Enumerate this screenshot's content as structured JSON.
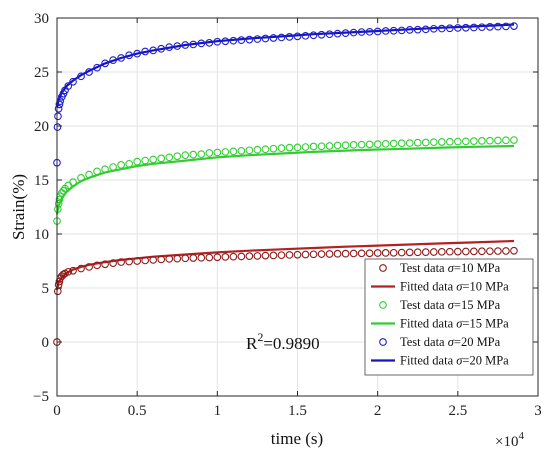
{
  "chart_data": {
    "type": "scatter",
    "xlabel": "time (s)",
    "ylabel": "Strain(%)",
    "x_multiplier": "×10",
    "x_multiplier_exp": "4",
    "xlim": [
      0,
      3
    ],
    "ylim": [
      -5,
      30
    ],
    "xticks": [
      0,
      0.5,
      1,
      1.5,
      2,
      2.5,
      3
    ],
    "xtick_labels": [
      "0",
      "0.5",
      "1",
      "1.5",
      "2",
      "2.5",
      "3"
    ],
    "yticks": [
      -5,
      0,
      5,
      10,
      15,
      20,
      25,
      30
    ],
    "ytick_labels": [
      "−5",
      "0",
      "5",
      "10",
      "15",
      "20",
      "25",
      "30"
    ],
    "grid": true,
    "annotation": {
      "text": "R",
      "sup": "2",
      "value": "=0.9890"
    },
    "legend": {
      "placement": "lower-right",
      "entries": [
        {
          "prefix": "Test data ",
          "sym": "σ",
          "suffix": "=10 MPa",
          "kind": "marker",
          "color": "#8b1a1a"
        },
        {
          "prefix": "Fitted data ",
          "sym": "σ",
          "suffix": "=10 MPa",
          "kind": "line",
          "color": "#b22222"
        },
        {
          "prefix": "Test data ",
          "sym": "σ",
          "suffix": "=15 MPa",
          "kind": "marker",
          "color": "#33cc33"
        },
        {
          "prefix": "Fitted data ",
          "sym": "σ",
          "suffix": "=15 MPa",
          "kind": "line",
          "color": "#33cc33"
        },
        {
          "prefix": "Test data ",
          "sym": "σ",
          "suffix": "=20 MPa",
          "kind": "marker",
          "color": "#1f1fcc"
        },
        {
          "prefix": "Fitted data ",
          "sym": "σ",
          "suffix": "=20 MPa",
          "kind": "line",
          "color": "#1515bb"
        }
      ]
    },
    "series": [
      {
        "kind": "test",
        "stress": "10 MPa",
        "color": "#8b1a1a",
        "x": [
          0.0,
          0.005,
          0.01,
          0.015,
          0.02,
          0.03,
          0.04,
          0.05,
          0.07,
          0.1,
          0.15,
          0.2,
          0.25,
          0.3,
          0.35,
          0.4,
          0.45,
          0.5,
          0.55,
          0.6,
          0.65,
          0.7,
          0.75,
          0.8,
          0.85,
          0.9,
          0.95,
          1.0,
          1.05,
          1.1,
          1.15,
          1.2,
          1.25,
          1.3,
          1.35,
          1.4,
          1.45,
          1.5,
          1.55,
          1.6,
          1.65,
          1.7,
          1.75,
          1.8,
          1.85,
          1.9,
          1.95,
          2.0,
          2.05,
          2.1,
          2.15,
          2.2,
          2.25,
          2.3,
          2.35,
          2.4,
          2.45,
          2.5,
          2.55,
          2.6,
          2.65,
          2.7,
          2.75,
          2.8,
          2.85
        ],
        "y": [
          0.0,
          4.7,
          5.3,
          5.6,
          5.9,
          6.1,
          6.25,
          6.35,
          6.5,
          6.6,
          6.8,
          6.95,
          7.1,
          7.2,
          7.3,
          7.4,
          7.45,
          7.5,
          7.55,
          7.6,
          7.65,
          7.7,
          7.72,
          7.75,
          7.78,
          7.8,
          7.82,
          7.85,
          7.88,
          7.9,
          7.92,
          7.95,
          7.97,
          8.0,
          8.02,
          8.04,
          8.06,
          8.08,
          8.1,
          8.12,
          8.14,
          8.15,
          8.17,
          8.18,
          8.2,
          8.21,
          8.22,
          8.24,
          8.25,
          8.26,
          8.28,
          8.3,
          8.31,
          8.32,
          8.33,
          8.35,
          8.36,
          8.37,
          8.38,
          8.39,
          8.4,
          8.41,
          8.42,
          8.43,
          8.45
        ]
      },
      {
        "kind": "fit",
        "stress": "10 MPa",
        "color": "#b22222",
        "x": [
          0.0,
          0.01,
          0.03,
          0.06,
          0.1,
          0.15,
          0.2,
          0.3,
          0.4,
          0.5,
          0.6,
          0.8,
          1.0,
          1.2,
          1.4,
          1.6,
          1.8,
          2.0,
          2.2,
          2.4,
          2.6,
          2.85
        ],
        "y": [
          4.8,
          5.5,
          6.0,
          6.4,
          6.7,
          6.95,
          7.15,
          7.4,
          7.6,
          7.75,
          7.9,
          8.1,
          8.3,
          8.45,
          8.58,
          8.7,
          8.82,
          8.93,
          9.03,
          9.13,
          9.22,
          9.35
        ]
      },
      {
        "kind": "test",
        "stress": "15 MPa",
        "color": "#33cc33",
        "x": [
          0.0,
          0.005,
          0.01,
          0.015,
          0.02,
          0.03,
          0.04,
          0.05,
          0.07,
          0.1,
          0.15,
          0.2,
          0.25,
          0.3,
          0.35,
          0.4,
          0.45,
          0.5,
          0.55,
          0.6,
          0.65,
          0.7,
          0.75,
          0.8,
          0.85,
          0.9,
          0.95,
          1.0,
          1.05,
          1.1,
          1.15,
          1.2,
          1.25,
          1.3,
          1.35,
          1.4,
          1.45,
          1.5,
          1.55,
          1.6,
          1.65,
          1.7,
          1.75,
          1.8,
          1.85,
          1.9,
          1.95,
          2.0,
          2.05,
          2.1,
          2.15,
          2.2,
          2.25,
          2.3,
          2.35,
          2.4,
          2.45,
          2.5,
          2.55,
          2.6,
          2.65,
          2.7,
          2.75,
          2.8,
          2.85
        ],
        "y": [
          11.2,
          12.3,
          12.8,
          13.2,
          13.5,
          13.8,
          14.0,
          14.2,
          14.5,
          14.8,
          15.2,
          15.5,
          15.8,
          16.0,
          16.2,
          16.4,
          16.5,
          16.7,
          16.8,
          16.9,
          17.0,
          17.1,
          17.2,
          17.3,
          17.35,
          17.4,
          17.5,
          17.55,
          17.6,
          17.65,
          17.7,
          17.75,
          17.8,
          17.85,
          17.9,
          17.95,
          18.0,
          18.02,
          18.05,
          18.1,
          18.12,
          18.15,
          18.2,
          18.22,
          18.25,
          18.28,
          18.3,
          18.32,
          18.35,
          18.38,
          18.4,
          18.42,
          18.45,
          18.47,
          18.5,
          18.52,
          18.54,
          18.56,
          18.58,
          18.6,
          18.62,
          18.64,
          18.66,
          18.68,
          18.7
        ]
      },
      {
        "kind": "fit",
        "stress": "15 MPa",
        "color": "#33cc33",
        "x": [
          0.0,
          0.01,
          0.03,
          0.06,
          0.1,
          0.15,
          0.2,
          0.3,
          0.4,
          0.5,
          0.6,
          0.8,
          1.0,
          1.2,
          1.4,
          1.6,
          1.8,
          2.0,
          2.2,
          2.4,
          2.6,
          2.85
        ],
        "y": [
          11.8,
          12.6,
          13.3,
          13.9,
          14.4,
          14.9,
          15.2,
          15.7,
          16.0,
          16.3,
          16.5,
          16.8,
          17.1,
          17.3,
          17.45,
          17.6,
          17.72,
          17.82,
          17.9,
          18.0,
          18.07,
          18.15
        ]
      },
      {
        "kind": "test",
        "stress": "20 MPa",
        "color": "#1f1fcc",
        "x": [
          0.0,
          0.003,
          0.006,
          0.01,
          0.015,
          0.02,
          0.03,
          0.04,
          0.05,
          0.07,
          0.1,
          0.15,
          0.2,
          0.25,
          0.3,
          0.35,
          0.4,
          0.45,
          0.5,
          0.55,
          0.6,
          0.65,
          0.7,
          0.75,
          0.8,
          0.85,
          0.9,
          0.95,
          1.0,
          1.05,
          1.1,
          1.15,
          1.2,
          1.25,
          1.3,
          1.35,
          1.4,
          1.45,
          1.5,
          1.55,
          1.6,
          1.65,
          1.7,
          1.75,
          1.8,
          1.85,
          1.9,
          1.95,
          2.0,
          2.05,
          2.1,
          2.15,
          2.2,
          2.25,
          2.3,
          2.35,
          2.4,
          2.45,
          2.5,
          2.55,
          2.6,
          2.65,
          2.7,
          2.75,
          2.8,
          2.85
        ],
        "y": [
          16.6,
          19.9,
          20.9,
          21.6,
          22.0,
          22.3,
          22.7,
          23.0,
          23.3,
          23.7,
          24.1,
          24.6,
          25.0,
          25.4,
          25.8,
          26.1,
          26.3,
          26.55,
          26.7,
          26.9,
          27.0,
          27.15,
          27.3,
          27.4,
          27.5,
          27.55,
          27.65,
          27.7,
          27.8,
          27.85,
          27.9,
          27.95,
          28.0,
          28.05,
          28.1,
          28.15,
          28.2,
          28.25,
          28.3,
          28.35,
          28.4,
          28.45,
          28.5,
          28.55,
          28.6,
          28.65,
          28.7,
          28.72,
          28.75,
          28.8,
          28.82,
          28.85,
          28.9,
          28.92,
          28.95,
          29.0,
          29.02,
          29.05,
          29.08,
          29.1,
          29.12,
          29.15,
          29.18,
          29.2,
          29.22,
          29.25
        ]
      },
      {
        "kind": "fit",
        "stress": "20 MPa",
        "color": "#1515bb",
        "x": [
          0.0,
          0.01,
          0.03,
          0.06,
          0.1,
          0.15,
          0.2,
          0.3,
          0.4,
          0.5,
          0.6,
          0.8,
          1.0,
          1.2,
          1.4,
          1.6,
          1.8,
          2.0,
          2.2,
          2.4,
          2.6,
          2.85
        ],
        "y": [
          21.7,
          22.4,
          23.1,
          23.7,
          24.2,
          24.7,
          25.1,
          25.8,
          26.3,
          26.7,
          27.0,
          27.5,
          27.85,
          28.1,
          28.3,
          28.5,
          28.65,
          28.8,
          28.95,
          29.1,
          29.22,
          29.4
        ]
      }
    ]
  }
}
